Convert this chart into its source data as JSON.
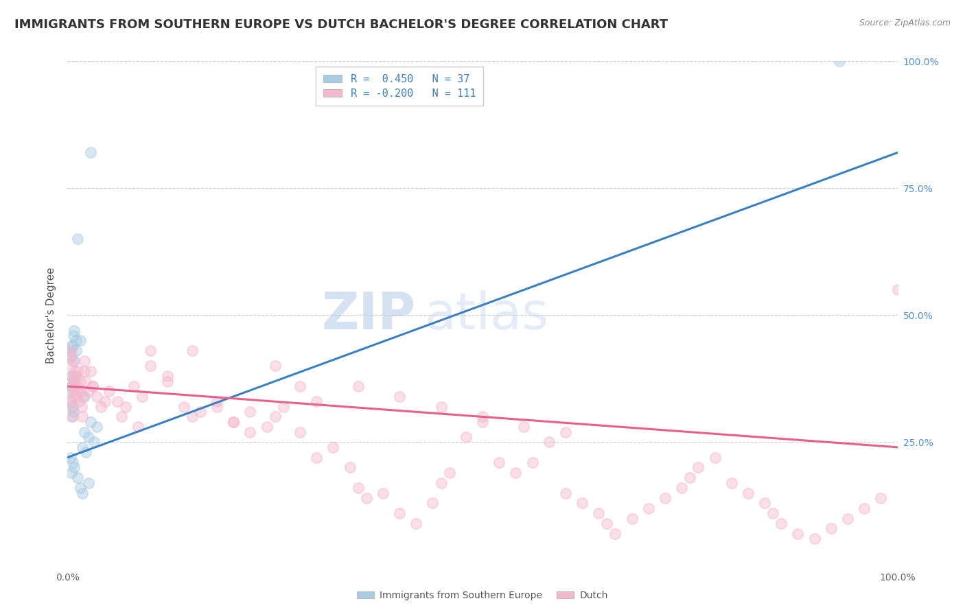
{
  "title": "IMMIGRANTS FROM SOUTHERN EUROPE VS DUTCH BACHELOR'S DEGREE CORRELATION CHART",
  "source": "Source: ZipAtlas.com",
  "ylabel_left": "Bachelor's Degree",
  "legend_blue_label": "Immigrants from Southern Europe",
  "legend_pink_label": "Dutch",
  "legend_blue_r": "R =  0.450",
  "legend_blue_n": "N = 37",
  "legend_pink_r": "R = -0.200",
  "legend_pink_n": "N = 111",
  "watermark_zip": "ZIP",
  "watermark_atlas": "atlas",
  "blue_color": "#a8cce4",
  "pink_color": "#f4b8cc",
  "blue_line_color": "#3a7fc1",
  "pink_line_color": "#e8608a",
  "background_color": "#ffffff",
  "blue_scatter_x": [
    2.8,
    1.2,
    0.5,
    0.8,
    1.0,
    0.3,
    0.5,
    0.7,
    0.4,
    0.6,
    0.9,
    0.5,
    0.3,
    0.4,
    0.6,
    0.8,
    1.5,
    1.0,
    0.5,
    0.7,
    2.5,
    1.8,
    2.2,
    0.4,
    0.6,
    0.8,
    0.5,
    2.0,
    2.8,
    3.5,
    2.0,
    3.2,
    1.2,
    2.5,
    1.5,
    1.8,
    93.0
  ],
  "blue_scatter_y": [
    82.0,
    65.0,
    44.0,
    47.0,
    45.0,
    43.0,
    38.0,
    46.0,
    42.0,
    44.0,
    38.0,
    36.0,
    35.0,
    33.0,
    32.0,
    41.0,
    45.0,
    43.0,
    30.0,
    31.0,
    26.0,
    24.0,
    23.0,
    22.0,
    21.0,
    20.0,
    19.0,
    34.0,
    29.0,
    28.0,
    27.0,
    25.0,
    18.0,
    17.0,
    16.0,
    15.0,
    100.0
  ],
  "pink_scatter_x": [
    0.3,
    0.4,
    0.5,
    0.5,
    0.6,
    0.7,
    0.8,
    0.9,
    1.0,
    1.0,
    1.1,
    1.2,
    1.3,
    1.4,
    1.5,
    1.6,
    1.7,
    1.8,
    1.9,
    2.0,
    2.0,
    2.2,
    2.5,
    2.8,
    3.0,
    3.5,
    4.0,
    5.0,
    6.0,
    7.0,
    8.0,
    9.0,
    10.0,
    12.0,
    14.0,
    15.0,
    16.0,
    18.0,
    20.0,
    22.0,
    24.0,
    25.0,
    26.0,
    28.0,
    30.0,
    32.0,
    34.0,
    35.0,
    36.0,
    38.0,
    40.0,
    42.0,
    44.0,
    45.0,
    46.0,
    48.0,
    50.0,
    52.0,
    54.0,
    56.0,
    58.0,
    60.0,
    62.0,
    64.0,
    65.0,
    66.0,
    68.0,
    70.0,
    72.0,
    74.0,
    75.0,
    76.0,
    78.0,
    80.0,
    82.0,
    84.0,
    85.0,
    86.0,
    88.0,
    90.0,
    92.0,
    94.0,
    96.0,
    98.0,
    100.0,
    3.0,
    4.5,
    6.5,
    8.5,
    10.0,
    12.0,
    15.0,
    18.0,
    20.0,
    22.0,
    25.0,
    28.0,
    30.0,
    0.6,
    0.4,
    0.5,
    0.7,
    0.8,
    0.5,
    0.6,
    40.0,
    50.0,
    60.0,
    35.0,
    45.0,
    55.0
  ],
  "pink_scatter_y": [
    42.0,
    40.0,
    38.0,
    43.0,
    41.0,
    37.0,
    36.0,
    39.0,
    34.0,
    38.0,
    36.0,
    35.0,
    39.0,
    33.0,
    37.0,
    35.0,
    32.0,
    30.0,
    34.0,
    41.0,
    39.0,
    37.0,
    35.0,
    39.0,
    36.0,
    34.0,
    32.0,
    35.0,
    33.0,
    32.0,
    36.0,
    34.0,
    40.0,
    37.0,
    32.0,
    30.0,
    31.0,
    33.0,
    29.0,
    31.0,
    28.0,
    30.0,
    32.0,
    27.0,
    22.0,
    24.0,
    20.0,
    16.0,
    14.0,
    15.0,
    11.0,
    9.0,
    13.0,
    17.0,
    19.0,
    26.0,
    29.0,
    21.0,
    19.0,
    21.0,
    25.0,
    15.0,
    13.0,
    11.0,
    9.0,
    7.0,
    10.0,
    12.0,
    14.0,
    16.0,
    18.0,
    20.0,
    22.0,
    17.0,
    15.0,
    13.0,
    11.0,
    9.0,
    7.0,
    6.0,
    8.0,
    10.0,
    12.0,
    14.0,
    55.0,
    36.0,
    33.0,
    30.0,
    28.0,
    43.0,
    38.0,
    43.0,
    32.0,
    29.0,
    27.0,
    40.0,
    36.0,
    33.0,
    35.0,
    33.0,
    36.0,
    34.0,
    37.0,
    32.0,
    30.0,
    34.0,
    30.0,
    27.0,
    36.0,
    32.0,
    28.0
  ],
  "blue_trendline": [
    0.0,
    100.0,
    22.0,
    82.0
  ],
  "pink_trendline": [
    0.0,
    100.0,
    36.0,
    24.0
  ],
  "xlim": [
    0.0,
    100.0
  ],
  "ylim": [
    0.0,
    100.0
  ],
  "yticks": [
    25.0,
    50.0,
    75.0,
    100.0
  ],
  "grid_color": "#cccccc",
  "title_fontsize": 13,
  "axis_label_fontsize": 11,
  "tick_fontsize": 10,
  "scatter_size": 120,
  "scatter_alpha": 0.45,
  "line_width": 2.2
}
